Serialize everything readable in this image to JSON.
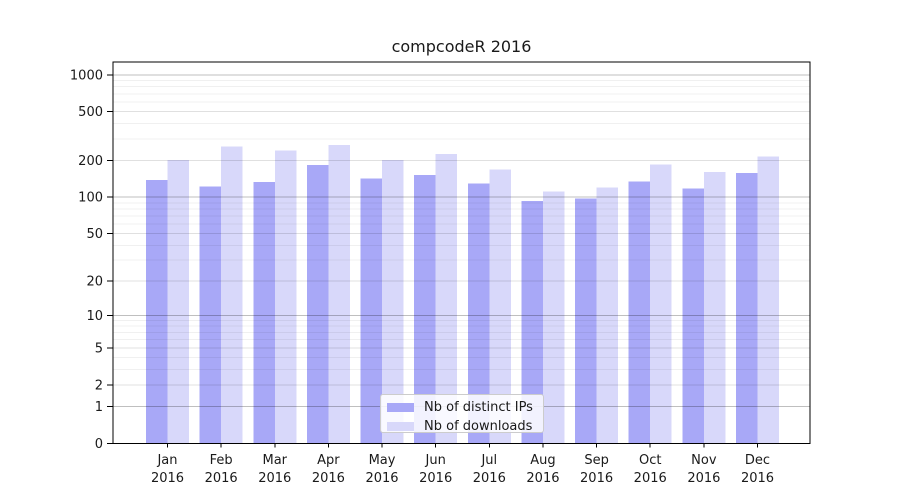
{
  "chart_data": {
    "type": "bar",
    "title": "compcodeR 2016",
    "categories": [
      "Jan",
      "Feb",
      "Mar",
      "Apr",
      "May",
      "Jun",
      "Jul",
      "Aug",
      "Sep",
      "Oct",
      "Nov",
      "Dec"
    ],
    "year_label": "2016",
    "series": [
      {
        "name": "Nb of distinct IPs",
        "color": "#a8a8f7",
        "values": [
          138,
          123,
          133,
          183,
          143,
          152,
          130,
          93,
          98,
          134,
          118,
          158
        ]
      },
      {
        "name": "Nb of downloads",
        "color": "#d8d8fa",
        "values": [
          202,
          260,
          242,
          267,
          202,
          225,
          169,
          111,
          120,
          186,
          161,
          215
        ]
      }
    ],
    "yscale": "log1p",
    "ylim": [
      0,
      1270
    ],
    "yticks": [
      0,
      1,
      2,
      5,
      10,
      20,
      50,
      100,
      200,
      500,
      1000
    ],
    "minor_gridlines": [
      3,
      4,
      6,
      7,
      8,
      9,
      30,
      40,
      60,
      70,
      80,
      90,
      300,
      400,
      600,
      700,
      800,
      900
    ],
    "emphasized_gridlines": [
      1,
      10,
      100,
      1000
    ],
    "grid": true,
    "legend_position": "inside-bottom-center"
  },
  "colors": {
    "background": "#ffffff",
    "axis": "#000000",
    "tick_label": "#1a1a1a",
    "grid_minor": "rgba(0,0,0,0.06)",
    "grid_major": "rgba(0,0,0,0.12)",
    "grid_emphasis": "rgba(0,0,0,0.25)",
    "legend_border": "#cccccc"
  }
}
